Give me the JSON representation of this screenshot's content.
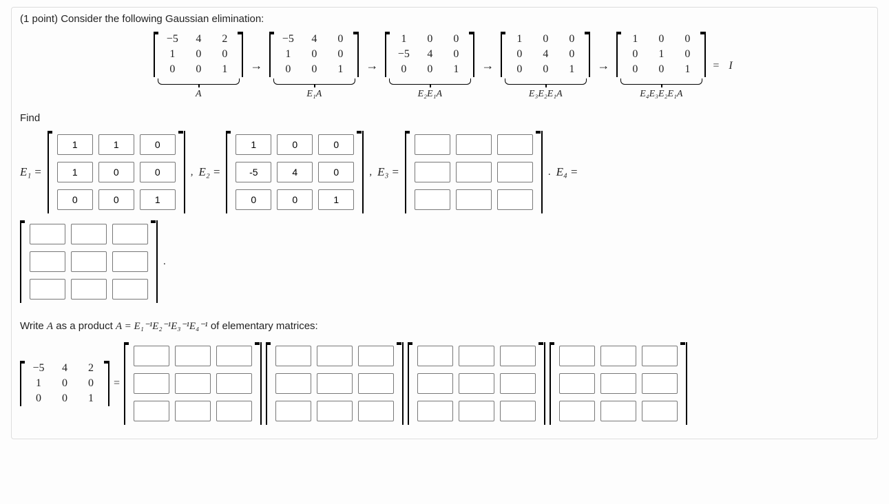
{
  "points_text": "(1 point) Consider the following Gaussian elimination:",
  "chain": {
    "arrow": "→",
    "eq": "=",
    "Iletter": "I",
    "A": {
      "rows": [
        [
          "−5",
          "4",
          "2"
        ],
        [
          "1",
          "0",
          "0"
        ],
        [
          "0",
          "0",
          "1"
        ]
      ],
      "label": "A"
    },
    "E1A": {
      "rows": [
        [
          "−5",
          "4",
          "0"
        ],
        [
          "1",
          "0",
          "0"
        ],
        [
          "0",
          "0",
          "1"
        ]
      ],
      "label": "E₁A"
    },
    "E2E1A": {
      "rows": [
        [
          "1",
          "0",
          "0"
        ],
        [
          "−5",
          "4",
          "0"
        ],
        [
          "0",
          "0",
          "1"
        ]
      ],
      "label": "E₂E₁A"
    },
    "E3E2E1A": {
      "rows": [
        [
          "1",
          "0",
          "0"
        ],
        [
          "0",
          "4",
          "0"
        ],
        [
          "0",
          "0",
          "1"
        ]
      ],
      "label": "E₃E₂E₁A"
    },
    "E4E3E2E1A": {
      "rows": [
        [
          "1",
          "0",
          "0"
        ],
        [
          "0",
          "1",
          "0"
        ],
        [
          "0",
          "0",
          "1"
        ]
      ],
      "label": "E₄E₃E₂E₁A"
    }
  },
  "find_label": "Find",
  "E_labels": {
    "E1": "E₁",
    "E2": "E₂",
    "E3": "E₃",
    "E4": "E₄"
  },
  "prefilled": {
    "E1": [
      [
        "1",
        "1",
        "0"
      ],
      [
        "1",
        "0",
        "0"
      ],
      [
        "0",
        "0",
        "1"
      ]
    ],
    "E2": [
      [
        "1",
        "0",
        "0"
      ],
      [
        "-5",
        "4",
        "0"
      ],
      [
        "0",
        "0",
        "1"
      ]
    ],
    "E3": [
      [
        "",
        "",
        ""
      ],
      [
        "",
        "",
        ""
      ],
      [
        "",
        "",
        ""
      ]
    ],
    "E4_top": [
      [
        "",
        "",
        ""
      ],
      [
        "",
        "",
        ""
      ],
      [
        "",
        "",
        ""
      ]
    ]
  },
  "part2_text_head": "Write ",
  "part2_text_mid": " as a product ",
  "part2_text_eq": "A = E₁⁻¹E₂⁻¹E₃⁻¹E₄⁻¹",
  "part2_text_tail": " of elementary matrices:",
  "Aletter": "A",
  "lhs_matrix": [
    [
      "−5",
      "4",
      "2"
    ],
    [
      "1",
      "0",
      "0"
    ],
    [
      "0",
      "0",
      "1"
    ]
  ],
  "eq_sign": "=",
  "comma": ",",
  "period": "."
}
